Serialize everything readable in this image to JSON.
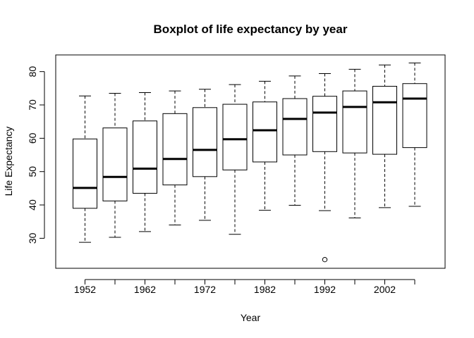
{
  "chart_data": {
    "type": "boxplot",
    "title": "Boxplot of life expectancy by year",
    "xlabel": "Year",
    "ylabel": "Life Expectancy",
    "ylim": [
      21,
      85
    ],
    "yticks": [
      30,
      40,
      50,
      60,
      70,
      80
    ],
    "x_tick_labels_shown": [
      "1952",
      "1962",
      "1972",
      "1982",
      "1992",
      "2002"
    ],
    "grid": false,
    "legend": "none",
    "categories": [
      "1952",
      "1957",
      "1962",
      "1967",
      "1972",
      "1977",
      "1982",
      "1987",
      "1992",
      "1997",
      "2002",
      "2007"
    ],
    "boxes": [
      {
        "year": "1952",
        "min": 28.8,
        "q1": 39.0,
        "median": 45.1,
        "q3": 59.8,
        "max": 72.7,
        "outliers": []
      },
      {
        "year": "1957",
        "min": 30.3,
        "q1": 41.2,
        "median": 48.4,
        "q3": 63.1,
        "max": 73.5,
        "outliers": []
      },
      {
        "year": "1962",
        "min": 32.0,
        "q1": 43.5,
        "median": 50.9,
        "q3": 65.2,
        "max": 73.7,
        "outliers": []
      },
      {
        "year": "1967",
        "min": 34.0,
        "q1": 46.0,
        "median": 53.8,
        "q3": 67.4,
        "max": 74.2,
        "outliers": []
      },
      {
        "year": "1972",
        "min": 35.4,
        "q1": 48.5,
        "median": 56.5,
        "q3": 69.2,
        "max": 74.7,
        "outliers": []
      },
      {
        "year": "1977",
        "min": 31.2,
        "q1": 50.5,
        "median": 59.7,
        "q3": 70.2,
        "max": 76.1,
        "outliers": []
      },
      {
        "year": "1982",
        "min": 38.4,
        "q1": 52.9,
        "median": 62.4,
        "q3": 70.9,
        "max": 77.1,
        "outliers": []
      },
      {
        "year": "1987",
        "min": 39.9,
        "q1": 55.0,
        "median": 65.8,
        "q3": 71.9,
        "max": 78.7,
        "outliers": []
      },
      {
        "year": "1992",
        "min": 38.3,
        "q1": 56.0,
        "median": 67.7,
        "q3": 72.6,
        "max": 79.4,
        "outliers": [
          23.6
        ]
      },
      {
        "year": "1997",
        "min": 36.1,
        "q1": 55.6,
        "median": 69.4,
        "q3": 74.2,
        "max": 80.7,
        "outliers": []
      },
      {
        "year": "2002",
        "min": 39.2,
        "q1": 55.2,
        "median": 70.8,
        "q3": 75.6,
        "max": 82.0,
        "outliers": []
      },
      {
        "year": "2007",
        "min": 39.6,
        "q1": 57.2,
        "median": 71.9,
        "q3": 76.4,
        "max": 82.6,
        "outliers": []
      }
    ]
  }
}
